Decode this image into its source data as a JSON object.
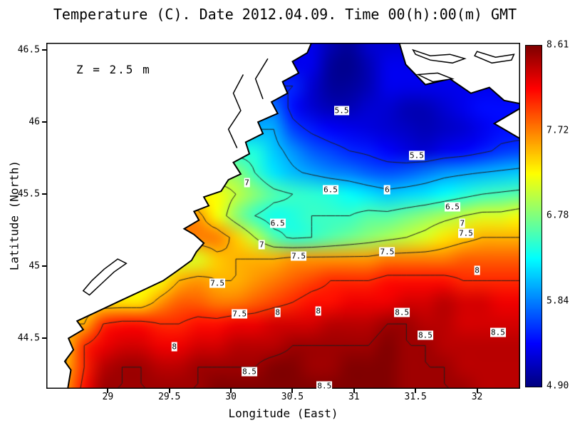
{
  "title": "Temperature (C). Date 2012.04.09. Time 00(h):00(m) GMT",
  "annotation": "Z = 2.5 m",
  "axes": {
    "x_label": "Longitude (East)",
    "y_label": "Latitude (North)"
  },
  "colors": {
    "contour_line": "#1e1e1e",
    "coastline": "#000000",
    "land": "#ffffff",
    "frame": "#000000"
  },
  "chart_data": {
    "type": "heatmap",
    "title": "Temperature (C). Date 2012.04.09. Time 00(h):00(m) GMT",
    "xlabel": "Longitude (East)",
    "ylabel": "Latitude (North)",
    "colormap": "jet",
    "vmin": 4.9,
    "vmax": 8.61,
    "colorbar_labels": [
      "8.61",
      "7.72",
      "6.78",
      "5.84",
      "4.90"
    ],
    "lon_range": [
      28.5,
      32.35
    ],
    "lat_range": [
      44.15,
      46.55
    ],
    "nx": 26,
    "ny": 17,
    "x_ticks": [
      29,
      29.5,
      30,
      30.5,
      31,
      31.5,
      32
    ],
    "x_tick_labels": [
      "29",
      "29.5",
      "30",
      "30.5",
      "31",
      "31.5",
      "32"
    ],
    "y_ticks": [
      46.5,
      46,
      45.5,
      45,
      44.5
    ],
    "y_tick_labels": [
      "46.5",
      "46",
      "45.5",
      "45",
      "44.5"
    ],
    "contour_levels": [
      5.5,
      6,
      6.5,
      7,
      7.5,
      8,
      8.5
    ],
    "values": [
      [
        null,
        null,
        null,
        null,
        null,
        null,
        null,
        null,
        null,
        null,
        null,
        null,
        null,
        null,
        5.3,
        5.1,
        5.0,
        5.2,
        null,
        null,
        null,
        null,
        null,
        null,
        null,
        null
      ],
      [
        null,
        null,
        null,
        null,
        null,
        null,
        null,
        null,
        null,
        null,
        null,
        null,
        null,
        null,
        5.3,
        5.0,
        4.95,
        5.1,
        5.3,
        null,
        null,
        null,
        null,
        null,
        null,
        null
      ],
      [
        null,
        null,
        null,
        null,
        null,
        null,
        null,
        null,
        null,
        null,
        null,
        null,
        null,
        5.5,
        5.2,
        5.0,
        5.0,
        5.1,
        5.3,
        null,
        null,
        null,
        null,
        null,
        null,
        null
      ],
      [
        null,
        null,
        null,
        null,
        null,
        null,
        null,
        null,
        null,
        null,
        null,
        null,
        5.8,
        5.4,
        5.2,
        5.1,
        5.1,
        5.2,
        5.2,
        5.1,
        5.1,
        5.2,
        5.3,
        5.4,
        null,
        null
      ],
      [
        null,
        null,
        null,
        null,
        null,
        null,
        null,
        null,
        null,
        null,
        null,
        null,
        6.0,
        5.6,
        5.45,
        5.35,
        5.3,
        5.25,
        5.2,
        5.15,
        5.1,
        5.15,
        5.2,
        5.3,
        5.4,
        null
      ],
      [
        null,
        null,
        null,
        null,
        null,
        null,
        null,
        null,
        null,
        null,
        null,
        6.4,
        6.1,
        5.9,
        5.7,
        5.6,
        5.5,
        5.45,
        5.35,
        5.25,
        5.2,
        5.3,
        5.35,
        5.45,
        5.55,
        5.6
      ],
      [
        null,
        null,
        null,
        null,
        null,
        null,
        null,
        null,
        null,
        null,
        6.8,
        6.5,
        6.2,
        6.05,
        5.95,
        5.85,
        5.8,
        5.7,
        5.65,
        5.7,
        5.8,
        5.9,
        5.95,
        6.0,
        6.05,
        6.1
      ],
      [
        null,
        null,
        null,
        null,
        null,
        null,
        null,
        null,
        null,
        7.2,
        7.0,
        6.8,
        6.6,
        6.5,
        6.45,
        6.4,
        6.3,
        6.2,
        6.1,
        6.15,
        6.2,
        6.3,
        6.4,
        6.5,
        6.55,
        6.6
      ],
      [
        null,
        null,
        null,
        null,
        null,
        null,
        null,
        null,
        7.6,
        7.2,
        6.8,
        6.5,
        6.35,
        6.4,
        6.5,
        6.5,
        6.5,
        6.6,
        6.6,
        6.7,
        6.8,
        6.9,
        7.0,
        7.1,
        7.1,
        7.2
      ],
      [
        null,
        null,
        null,
        null,
        null,
        null,
        null,
        null,
        null,
        7.7,
        7.4,
        7.0,
        6.6,
        6.45,
        6.5,
        6.6,
        6.7,
        6.8,
        6.9,
        7.0,
        7.1,
        7.3,
        7.4,
        7.5,
        7.5,
        7.5
      ],
      [
        null,
        null,
        null,
        null,
        null,
        null,
        null,
        null,
        7.1,
        7.4,
        7.5,
        7.5,
        7.5,
        7.6,
        7.6,
        7.6,
        7.6,
        7.6,
        7.7,
        7.7,
        7.7,
        7.7,
        7.8,
        7.8,
        7.8,
        7.8
      ],
      [
        null,
        null,
        null,
        null,
        null,
        null,
        7.2,
        7.5,
        7.6,
        7.5,
        7.5,
        7.6,
        7.7,
        7.8,
        7.9,
        8.0,
        8.0,
        8.0,
        8.1,
        8.1,
        8.1,
        8.1,
        8.0,
        8.0,
        8.0,
        8.0
      ],
      [
        null,
        null,
        null,
        null,
        null,
        7.3,
        7.6,
        7.8,
        7.8,
        7.7,
        7.7,
        7.8,
        7.9,
        8.0,
        8.1,
        8.1,
        8.2,
        8.2,
        8.2,
        8.3,
        8.3,
        8.4,
        8.3,
        8.3,
        8.2,
        8.2
      ],
      [
        null,
        null,
        7.5,
        8.0,
        8.1,
        8.1,
        8.0,
        8.0,
        8.1,
        8.1,
        8.2,
        8.2,
        8.3,
        8.3,
        8.3,
        8.4,
        8.4,
        8.4,
        8.5,
        8.5,
        8.4,
        8.4,
        8.3,
        8.3,
        8.3,
        8.3
      ],
      [
        null,
        7.4,
        8.0,
        8.2,
        8.3,
        8.3,
        8.2,
        8.2,
        8.3,
        8.3,
        8.4,
        8.4,
        8.4,
        8.5,
        8.5,
        8.5,
        8.5,
        8.5,
        8.6,
        8.5,
        8.5,
        8.4,
        8.4,
        8.4,
        8.4,
        8.4
      ],
      [
        null,
        7.5,
        8.0,
        8.4,
        8.5,
        8.5,
        8.4,
        8.4,
        8.5,
        8.5,
        8.5,
        8.5,
        8.6,
        8.6,
        8.5,
        8.5,
        8.6,
        8.6,
        8.6,
        8.5,
        8.5,
        8.5,
        8.4,
        8.4,
        8.4,
        8.4
      ],
      [
        null,
        7.6,
        8.1,
        8.5,
        8.5,
        8.5,
        8.5,
        8.5,
        8.5,
        8.6,
        8.6,
        8.6,
        8.6,
        8.6,
        8.6,
        8.6,
        8.6,
        8.6,
        8.6,
        8.5,
        8.5,
        8.5,
        8.5,
        8.4,
        8.4,
        8.4
      ]
    ],
    "contour_labels": [
      {
        "v": "5.5",
        "lon": 30.9,
        "lat": 46.08
      },
      {
        "v": "5.5",
        "lon": 31.51,
        "lat": 45.77
      },
      {
        "v": "7",
        "lon": 30.13,
        "lat": 45.58
      },
      {
        "v": "6.5",
        "lon": 30.81,
        "lat": 45.53
      },
      {
        "v": "6",
        "lon": 31.27,
        "lat": 45.53
      },
      {
        "v": "6.5",
        "lon": 31.8,
        "lat": 45.41
      },
      {
        "v": "7",
        "lon": 31.88,
        "lat": 45.3
      },
      {
        "v": "7.5",
        "lon": 31.91,
        "lat": 45.23
      },
      {
        "v": "6.5",
        "lon": 30.38,
        "lat": 45.3
      },
      {
        "v": "7",
        "lon": 30.25,
        "lat": 45.15
      },
      {
        "v": "7.5",
        "lon": 30.55,
        "lat": 45.07
      },
      {
        "v": "7.5",
        "lon": 31.27,
        "lat": 45.1
      },
      {
        "v": "8",
        "lon": 32.0,
        "lat": 44.97
      },
      {
        "v": "7.5",
        "lon": 29.89,
        "lat": 44.88
      },
      {
        "v": "7.5",
        "lon": 30.07,
        "lat": 44.67
      },
      {
        "v": "8",
        "lon": 30.38,
        "lat": 44.68
      },
      {
        "v": "8",
        "lon": 30.71,
        "lat": 44.69
      },
      {
        "v": "8.5",
        "lon": 31.39,
        "lat": 44.68
      },
      {
        "v": "8.5",
        "lon": 31.58,
        "lat": 44.52
      },
      {
        "v": "8.5",
        "lon": 32.17,
        "lat": 44.54
      },
      {
        "v": "8",
        "lon": 29.54,
        "lat": 44.44
      },
      {
        "v": "8.5",
        "lon": 30.15,
        "lat": 44.27
      },
      {
        "v": "8.5",
        "lon": 30.76,
        "lat": 44.17
      }
    ],
    "coastline": {
      "land": [
        [
          [
            28.45,
            44.13
          ],
          [
            28.67,
            44.13
          ],
          [
            28.7,
            44.28
          ],
          [
            28.65,
            44.34
          ],
          [
            28.72,
            44.42
          ],
          [
            28.68,
            44.5
          ],
          [
            28.8,
            44.56
          ],
          [
            28.75,
            44.62
          ],
          [
            28.95,
            44.7
          ],
          [
            29.1,
            44.76
          ],
          [
            29.3,
            44.84
          ],
          [
            29.45,
            44.9
          ],
          [
            29.55,
            44.96
          ],
          [
            29.68,
            45.04
          ],
          [
            29.72,
            45.1
          ],
          [
            29.78,
            45.16
          ],
          [
            29.7,
            45.22
          ],
          [
            29.62,
            45.26
          ],
          [
            29.74,
            45.32
          ],
          [
            29.7,
            45.38
          ],
          [
            29.82,
            45.42
          ],
          [
            29.78,
            45.48
          ],
          [
            29.92,
            45.52
          ],
          [
            29.98,
            45.6
          ],
          [
            30.08,
            45.64
          ],
          [
            30.02,
            45.72
          ],
          [
            30.15,
            45.78
          ],
          [
            30.12,
            45.86
          ],
          [
            30.26,
            45.92
          ],
          [
            30.22,
            46.0
          ],
          [
            30.38,
            46.06
          ],
          [
            30.33,
            46.14
          ],
          [
            30.46,
            46.2
          ],
          [
            30.42,
            46.28
          ],
          [
            30.55,
            46.34
          ],
          [
            30.5,
            46.42
          ],
          [
            30.62,
            46.48
          ],
          [
            30.68,
            46.6
          ],
          [
            28.45,
            46.6
          ]
        ],
        [
          [
            31.35,
            46.6
          ],
          [
            31.42,
            46.4
          ],
          [
            31.58,
            46.26
          ],
          [
            31.78,
            46.3
          ],
          [
            31.95,
            46.2
          ],
          [
            32.1,
            46.24
          ],
          [
            32.22,
            46.15
          ],
          [
            32.4,
            46.12
          ],
          [
            32.4,
            46.6
          ]
        ],
        [
          [
            32.4,
            45.86
          ],
          [
            32.14,
            45.99
          ],
          [
            32.4,
            46.12
          ]
        ]
      ],
      "outlines": [
        {
          "closed": true,
          "points": [
            [
              28.8,
              44.83
            ],
            [
              28.85,
              44.8
            ],
            [
              28.95,
              44.88
            ],
            [
              29.05,
              44.96
            ],
            [
              29.15,
              45.02
            ],
            [
              29.08,
              45.05
            ],
            [
              28.97,
              44.98
            ],
            [
              28.87,
              44.9
            ]
          ]
        },
        {
          "closed": false,
          "points": [
            [
              30.05,
              45.82
            ],
            [
              29.98,
              45.95
            ],
            [
              30.08,
              46.08
            ],
            [
              30.02,
              46.2
            ],
            [
              30.1,
              46.33
            ]
          ]
        },
        {
          "closed": false,
          "points": [
            [
              30.26,
              46.16
            ],
            [
              30.2,
              46.3
            ],
            [
              30.3,
              46.44
            ]
          ]
        },
        {
          "closed": true,
          "points": [
            [
              31.48,
              46.5
            ],
            [
              31.62,
              46.46
            ],
            [
              31.78,
              46.47
            ],
            [
              31.9,
              46.44
            ],
            [
              31.8,
              46.41
            ],
            [
              31.62,
              46.43
            ],
            [
              31.5,
              46.47
            ]
          ]
        },
        {
          "closed": true,
          "points": [
            [
              31.98,
              46.46
            ],
            [
              32.12,
              46.41
            ],
            [
              32.28,
              46.43
            ],
            [
              32.3,
              46.47
            ],
            [
              32.15,
              46.45
            ],
            [
              32.0,
              46.49
            ]
          ]
        },
        {
          "closed": true,
          "points": [
            [
              31.52,
              46.33
            ],
            [
              31.64,
              46.28
            ],
            [
              31.8,
              46.3
            ],
            [
              31.68,
              46.34
            ]
          ]
        }
      ]
    }
  }
}
